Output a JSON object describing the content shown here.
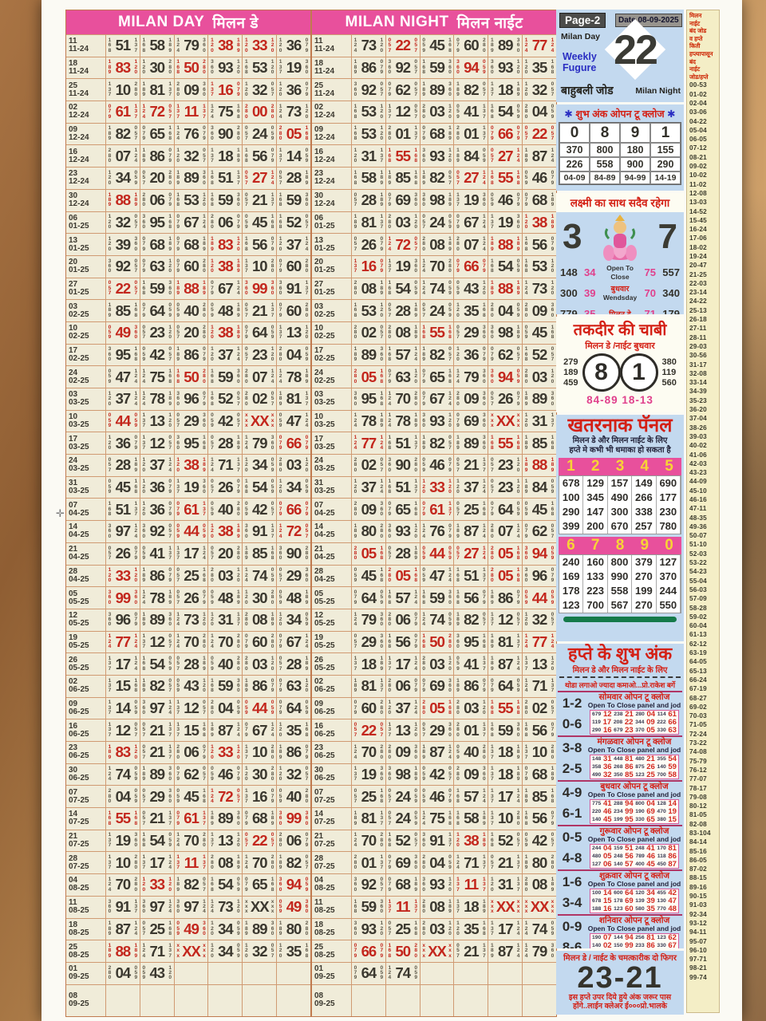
{
  "page": {
    "reg_mark": "✛"
  },
  "triplets": {
    "0": "280",
    "1": "137",
    "2": "057",
    "3": "120",
    "4": "059",
    "5": "168",
    "6": "079",
    "7": "124",
    "8": "189",
    "9": "360"
  },
  "day_chart": {
    "title_en": "MILAN DAY",
    "title_hi": "मिलन डे"
  },
  "night_chart": {
    "title_en": "MILAN NIGHT",
    "title_hi": "मिलन नाईट"
  },
  "dates": [
    [
      "11",
      "11-24"
    ],
    [
      "18",
      "11-24"
    ],
    [
      "25",
      "11-24"
    ],
    [
      "02",
      "12-24"
    ],
    [
      "09",
      "12-24"
    ],
    [
      "16",
      "12-24"
    ],
    [
      "23",
      "12-24"
    ],
    [
      "30",
      "12-24"
    ],
    [
      "06",
      "01-25"
    ],
    [
      "13",
      "01-25"
    ],
    [
      "20",
      "01-25"
    ],
    [
      "27",
      "01-25"
    ],
    [
      "03",
      "02-25"
    ],
    [
      "10",
      "02-25"
    ],
    [
      "17",
      "02-25"
    ],
    [
      "24",
      "02-25"
    ],
    [
      "03",
      "03-25"
    ],
    [
      "10",
      "03-25"
    ],
    [
      "17",
      "03-25"
    ],
    [
      "24",
      "03-25"
    ],
    [
      "31",
      "03-25"
    ],
    [
      "07",
      "04-25"
    ],
    [
      "14",
      "04-25"
    ],
    [
      "21",
      "04-25"
    ],
    [
      "28",
      "04-25"
    ],
    [
      "05",
      "05-25"
    ],
    [
      "12",
      "05-25"
    ],
    [
      "19",
      "05-25"
    ],
    [
      "26",
      "05-25"
    ],
    [
      "02",
      "06-25"
    ],
    [
      "09",
      "06-25"
    ],
    [
      "16",
      "06-25"
    ],
    [
      "23",
      "06-25"
    ],
    [
      "30",
      "06-25"
    ],
    [
      "07",
      "07-25"
    ],
    [
      "14",
      "07-25"
    ],
    [
      "21",
      "07-25"
    ],
    [
      "28",
      "07-25"
    ],
    [
      "04",
      "08-25"
    ],
    [
      "11",
      "08-25"
    ],
    [
      "18",
      "08-25"
    ],
    [
      "25",
      "08-25"
    ],
    [
      "01",
      "09-25"
    ],
    [
      "08",
      "09-25"
    ]
  ],
  "day_rows": [
    [
      "51",
      "58",
      "79",
      "38r",
      "33r",
      "36"
    ],
    [
      "83r",
      "30",
      "50r",
      "93",
      "53",
      "19"
    ],
    [
      "10",
      "81",
      "09",
      "16r",
      "32",
      "36"
    ],
    [
      "61r",
      "72r",
      "11r",
      "75",
      "00r",
      "73"
    ],
    [
      "82",
      "65",
      "76",
      "90",
      "24",
      "05r"
    ],
    [
      "07",
      "86",
      "32",
      "18",
      "56",
      "14"
    ],
    [
      "34",
      "20",
      "89",
      "51",
      "27r",
      "28"
    ],
    [
      "88r",
      "06",
      "53",
      "59",
      "21",
      "59"
    ],
    [
      "32",
      "95",
      "67",
      "06",
      "45",
      "52"
    ],
    [
      "39",
      "68",
      "68",
      "83r",
      "56",
      "37"
    ],
    [
      "92",
      "63",
      "60",
      "38r",
      "10",
      "60"
    ],
    [
      "22r",
      "59",
      "88r",
      "67",
      "99r",
      "91"
    ],
    [
      "85",
      "64",
      "40",
      "48",
      "21",
      "60"
    ],
    [
      "49r",
      "23",
      "20",
      "38r",
      "64",
      "13"
    ],
    [
      "95",
      "42",
      "86",
      "37",
      "23",
      "04"
    ],
    [
      "47",
      "75",
      "50r",
      "59",
      "07",
      "78"
    ],
    [
      "37",
      "78",
      "96",
      "52",
      "02",
      "81"
    ],
    [
      "44r",
      "13",
      "29",
      "42",
      "XXr",
      "47"
    ],
    [
      "36",
      "12",
      "95",
      "28",
      "79",
      "66r"
    ],
    [
      "28",
      "37",
      "38r",
      "71",
      "34",
      "03"
    ],
    [
      "45",
      "36",
      "19",
      "26",
      "54",
      "34"
    ],
    [
      "51",
      "36",
      "61r",
      "40",
      "42",
      "66r"
    ],
    [
      "97",
      "92",
      "44r",
      "38r",
      "91",
      "72r"
    ],
    [
      "26",
      "41",
      "17",
      "20",
      "85",
      "90"
    ],
    [
      "33r",
      "86",
      "25",
      "03",
      "74",
      "29"
    ],
    [
      "99r",
      "78",
      "26",
      "48",
      "30",
      "48"
    ],
    [
      "96",
      "89",
      "73",
      "31",
      "08",
      "34"
    ],
    [
      "77r",
      "12",
      "70",
      "70",
      "60",
      "67"
    ],
    [
      "17",
      "54",
      "28",
      "40",
      "03",
      "28"
    ],
    [
      "15",
      "82",
      "43",
      "59",
      "86",
      "63"
    ],
    [
      "14",
      "97",
      "12",
      "04",
      "44r",
      "64"
    ],
    [
      "12",
      "21",
      "15",
      "87",
      "67",
      "35"
    ],
    [
      "83r",
      "21",
      "06",
      "33r",
      "10",
      "86"
    ],
    [
      "74",
      "89",
      "62",
      "46",
      "30",
      "32"
    ],
    [
      "04",
      "29",
      "45",
      "72r",
      "16",
      "40"
    ],
    [
      "55r",
      "21",
      "61r",
      "89",
      "68",
      "99r"
    ],
    [
      "19",
      "54",
      "70",
      "13",
      "22r",
      "06"
    ],
    [
      "10",
      "17",
      "11r",
      "08",
      "70",
      "82"
    ],
    [
      "70",
      "33r",
      "82",
      "54",
      "65",
      "94r"
    ],
    [
      "91",
      "97",
      "97",
      "73",
      "XX",
      "49r"
    ],
    [
      "87",
      "25",
      "49r",
      "34",
      "89",
      "80"
    ],
    [
      "88r",
      "71",
      "XXr",
      "34",
      "32",
      "35"
    ],
    [
      "04",
      "43",
      "",
      "",
      "",
      ""
    ],
    [
      "",
      "",
      "",
      "",
      "",
      ""
    ]
  ],
  "night_rows": [
    [
      "73",
      "22r",
      "45",
      "60",
      "89",
      "77r"
    ],
    [
      "86",
      "92",
      "59",
      "94r",
      "93",
      "35"
    ],
    [
      "92",
      "62",
      "89",
      "82",
      "18",
      "32"
    ],
    [
      "53",
      "12",
      "03",
      "41",
      "54",
      "04"
    ],
    [
      "53",
      "01",
      "68",
      "01",
      "66r",
      "22r"
    ],
    [
      "31",
      "55r",
      "93",
      "84",
      "27r",
      "87"
    ],
    [
      "58",
      "85",
      "82",
      "27r",
      "55r",
      "46"
    ],
    [
      "28",
      "69",
      "98",
      "19",
      "46",
      "68"
    ],
    [
      "81",
      "03",
      "24",
      "67",
      "19",
      "38r"
    ],
    [
      "26",
      "72r",
      "08",
      "07",
      "88r",
      "56"
    ],
    [
      "16r",
      "19",
      "70",
      "66r",
      "54",
      "53"
    ],
    [
      "08",
      "54",
      "74",
      "43",
      "88r",
      "73"
    ],
    [
      "53",
      "28",
      "24",
      "35",
      "04",
      "09"
    ],
    [
      "02",
      "08",
      "55r",
      "29",
      "98",
      "45"
    ],
    [
      "89",
      "57",
      "82",
      "36",
      "62",
      "52"
    ],
    [
      "05r",
      "63",
      "65",
      "79",
      "94r",
      "03"
    ],
    [
      "95",
      "70",
      "67",
      "09",
      "26",
      "89"
    ],
    [
      "78",
      "78",
      "93",
      "69",
      "XXr",
      "31"
    ],
    [
      "77r",
      "51",
      "82",
      "89",
      "55r",
      "85"
    ],
    [
      "02",
      "90",
      "46",
      "21",
      "23",
      "88r"
    ],
    [
      "37",
      "51",
      "33r",
      "37",
      "23",
      "84"
    ],
    [
      "09",
      "65",
      "61r",
      "25",
      "64",
      "45"
    ],
    [
      "80",
      "93",
      "76",
      "87",
      "07",
      "62"
    ],
    [
      "05r",
      "28",
      "44r",
      "27r",
      "05r",
      "94r"
    ],
    [
      "45",
      "05r",
      "47",
      "51",
      "05r",
      "96"
    ],
    [
      "64",
      "57",
      "59",
      "56",
      "86",
      "44r"
    ],
    [
      "79",
      "06",
      "74",
      "82",
      "12",
      "32"
    ],
    [
      "29",
      "56",
      "50r",
      "95",
      "81",
      "77r"
    ],
    [
      "18",
      "17",
      "03",
      "41",
      "87",
      "13"
    ],
    [
      "81",
      "06",
      "69",
      "86",
      "64",
      "71"
    ],
    [
      "60",
      "37",
      "05r",
      "03",
      "55r",
      "02"
    ],
    [
      "22r",
      "13",
      "29",
      "01",
      "59",
      "56"
    ],
    [
      "70",
      "09",
      "87",
      "40",
      "18",
      "10"
    ],
    [
      "19",
      "98",
      "42",
      "09",
      "18",
      "68"
    ],
    [
      "25",
      "24",
      "46",
      "57",
      "17",
      "85"
    ],
    [
      "81",
      "24",
      "75",
      "58",
      "10",
      "56"
    ],
    [
      "70",
      "52",
      "91",
      "38r",
      "52",
      "42"
    ],
    [
      "01",
      "69",
      "04",
      "71",
      "21",
      "80"
    ],
    [
      "92",
      "68",
      "93",
      "11r",
      "31",
      "08"
    ],
    [
      "59",
      "11r",
      "08",
      "18",
      "XXr",
      "XXr"
    ],
    [
      "93",
      "25",
      "03",
      "35",
      "17",
      "74"
    ],
    [
      "66r",
      "50r",
      "XXr",
      "21",
      "87",
      "79"
    ],
    [
      "64",
      "74",
      "",
      "",
      "",
      ""
    ],
    [
      "",
      "",
      "",
      "",
      "",
      ""
    ]
  ],
  "panel": {
    "top": {
      "page_label": "Page-2",
      "date_label": "Date 08-09-2025",
      "milan_day": "Milan Day",
      "weekly1": "Weekly",
      "weekly2": "Fugure",
      "figure": "22",
      "bahubali": "बाहुबली जोड",
      "milan_night": "Milan Night"
    },
    "shubh": {
      "title": "शुभ अंक ओपन टू क्लोज",
      "rows": [
        [
          "0",
          "8",
          "9",
          "1"
        ],
        [
          "370",
          "800",
          "180",
          "155"
        ],
        [
          "226",
          "558",
          "900",
          "290"
        ],
        [
          "04-09",
          "84-89",
          "94-99",
          "14-19"
        ]
      ]
    },
    "lakshmi": {
      "title": "लक्ष्मी का साथ सदैव रहेगा",
      "big_left": "3",
      "big_right": "7",
      "rows": [
        {
          "l1": "148",
          "l2": "34",
          "hi": "",
          "en": "Open To Close",
          "r1": "75",
          "r2": "557"
        },
        {
          "l1": "300",
          "l2": "39",
          "hi": "बुधवार",
          "en": "Wendsday",
          "r1": "70",
          "r2": "340"
        },
        {
          "l1": "779",
          "l2": "35",
          "hi": "मिलन डे",
          "en": "",
          "r1": "71",
          "r2": "179"
        }
      ]
    },
    "taqdeer": {
      "title": "तकदीर की चाबी",
      "sub": "मिलन डे /नाईट बुधवार",
      "left": [
        "279",
        "189",
        "459"
      ],
      "big": [
        "8",
        "1"
      ],
      "right": [
        "380",
        "119",
        "560"
      ],
      "bottom": "84-89  18-13"
    },
    "danger": {
      "title": "खतरनाक पॅनल",
      "sub1": "मिलन डे और मिलन नाईट के लिए",
      "sub2": "हप्ते मे कभी भी धमाका हो सकता है",
      "groups": [
        {
          "digits": [
            "1",
            "2",
            "3",
            "4",
            "5"
          ],
          "rows": [
            [
              "678",
              "129",
              "157",
              "149",
              "690"
            ],
            [
              "100",
              "345",
              "490",
              "266",
              "177"
            ],
            [
              "290",
              "147",
              "300",
              "338",
              "230"
            ],
            [
              "399",
              "200",
              "670",
              "257",
              "780"
            ]
          ]
        },
        {
          "digits": [
            "6",
            "7",
            "8",
            "9",
            "0"
          ],
          "rows": [
            [
              "240",
              "160",
              "800",
              "379",
              "127"
            ],
            [
              "169",
              "133",
              "990",
              "270",
              "370"
            ],
            [
              "178",
              "223",
              "558",
              "199",
              "244"
            ],
            [
              "123",
              "700",
              "567",
              "270",
              "550"
            ]
          ]
        }
      ]
    },
    "lucky": {
      "title": "हप्ते के शुभ अंक",
      "sub": "मिलन डे और मिलन नाईट के लिए",
      "note": "थोडा लगाओ ज्यादा कमाओ...प्रो.राकेश बर्गे",
      "weekdays": [
        {
          "pairs": [
            "1-2",
            "0-6"
          ],
          "day": "सोमवार ओपन टू क्लोज",
          "en": "Open To Close panel and jod",
          "rows": [
            [
              "679",
              "12",
              "238",
              "21",
              "280",
              "04",
              "114",
              "61"
            ],
            [
              "119",
              "17",
              "208",
              "22",
              "344",
              "09",
              "222",
              "66"
            ],
            [
              "290",
              "16",
              "679",
              "23",
              "370",
              "05",
              "330",
              "63"
            ]
          ]
        },
        {
          "pairs": [
            "3-8",
            "2-5"
          ],
          "day": "मंगळवार ओपन टू क्लोज",
          "en": "Open To Close panel and jod",
          "rows": [
            [
              "148",
              "31",
              "448",
              "81",
              "480",
              "21",
              "355",
              "54"
            ],
            [
              "358",
              "36",
              "268",
              "86",
              "875",
              "26",
              "140",
              "59"
            ],
            [
              "490",
              "32",
              "350",
              "85",
              "123",
              "25",
              "700",
              "58"
            ]
          ]
        },
        {
          "pairs": [
            "4-9",
            "6-1"
          ],
          "day": "बुधवार ओपन टू क्लोज",
          "en": "Open To Close panel and jod",
          "rows": [
            [
              "775",
              "41",
              "288",
              "94",
              "800",
              "04",
              "128",
              "14"
            ],
            [
              "220",
              "46",
              "234",
              "99",
              "190",
              "69",
              "470",
              "19"
            ],
            [
              "140",
              "45",
              "199",
              "95",
              "330",
              "65",
              "380",
              "15"
            ]
          ]
        },
        {
          "pairs": [
            "0-5",
            "4-8"
          ],
          "day": "गुरूवार ओपन टू क्लोज",
          "en": "Open To Close panel and jod",
          "rows": [
            [
              "244",
              "04",
              "159",
              "51",
              "248",
              "41",
              "170",
              "81"
            ],
            [
              "480",
              "05",
              "248",
              "56",
              "789",
              "46",
              "118",
              "86"
            ],
            [
              "127",
              "06",
              "140",
              "57",
              "400",
              "45",
              "450",
              "87"
            ]
          ]
        },
        {
          "pairs": [
            "1-6",
            "3-4"
          ],
          "day": "शुक्रवार ओपन टू क्लोज",
          "en": "Open To Close panel and jod",
          "rows": [
            [
              "100",
              "14",
              "600",
              "64",
              "120",
              "34",
              "455",
              "42"
            ],
            [
              "678",
              "15",
              "178",
              "69",
              "139",
              "39",
              "130",
              "47"
            ],
            [
              "188",
              "16",
              "123",
              "60",
              "580",
              "35",
              "770",
              "48"
            ]
          ]
        },
        {
          "pairs": [
            "0-9",
            "8-6"
          ],
          "day": "शनिवार ओपन टू क्लोज",
          "en": "Open To Close panel and jod",
          "rows": [
            [
              "190",
              "07",
              "144",
              "94",
              "256",
              "81",
              "123",
              "62"
            ],
            [
              "140",
              "02",
              "150",
              "99",
              "233",
              "86",
              "330",
              "67"
            ],
            [
              "244",
              "06",
              "128",
              "98",
              "440",
              "80",
              "340",
              "68"
            ]
          ]
        }
      ]
    },
    "bottom": {
      "sub": "मिलन डे / नाईट के चमत्कारीक दो फिगर",
      "figure": "23-21",
      "note1": "इस हप्ते उपर दिये हुये अंक जरूर पास",
      "note2": "होंगे..लाईन क्लेअर ई०००प्रो.भालके"
    }
  },
  "strip": {
    "header": [
      "मिलन",
      "नाईट",
      "बंद जोड",
      "व हप्ते",
      "किती",
      "हप्त्यापासून",
      "बंद",
      "नाईट",
      "जोड/हप्ते"
    ],
    "values": [
      "00-53",
      "01-02",
      "02-04",
      "03-06",
      "04-22",
      "05-04",
      "06-05",
      "07-12",
      "08-21",
      "09-02",
      "10-02",
      "11-02",
      "12-08",
      "13-03",
      "14-52",
      "15-45",
      "16-24",
      "17-06",
      "18-02",
      "19-24",
      "20-47",
      "21-25",
      "22-03",
      "23-14",
      "24-22",
      "25-13",
      "26-18",
      "27-11",
      "28-11",
      "29-03",
      "30-56",
      "31-17",
      "32-08",
      "33-14",
      "34-39",
      "35-23",
      "36-20",
      "37-04",
      "38-26",
      "39-03",
      "40-02",
      "41-06",
      "42-03",
      "43-23",
      "44-09",
      "45-10",
      "46-16",
      "47-11",
      "48-35",
      "49-36",
      "50-07",
      "51-10",
      "52-03",
      "53-22",
      "54-23",
      "55-04",
      "56-03",
      "57-09",
      "58-28",
      "59-02",
      "60-04",
      "61-13",
      "62-12",
      "63-19",
      "64-05",
      "65-13",
      "66-24",
      "67-19",
      "68-27",
      "69-02",
      "70-03",
      "71-05",
      "72-24",
      "73-22",
      "74-08",
      "75-79",
      "76-12",
      "77-07",
      "78-17",
      "79-08",
      "80-12",
      "81-05",
      "82-08",
      "83-104",
      "84-14",
      "85-16",
      "86-05",
      "87-02",
      "88-15",
      "89-16",
      "90-15",
      "91-03",
      "92-34",
      "93-12",
      "94-11",
      "95-07",
      "96-10",
      "97-71",
      "98-21",
      "99-74"
    ]
  }
}
